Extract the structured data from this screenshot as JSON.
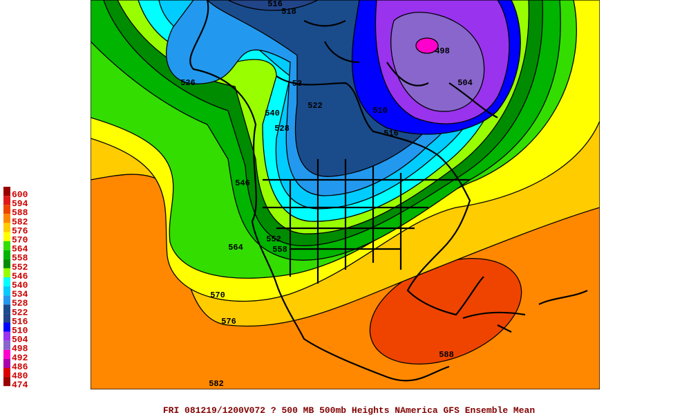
{
  "legend": [
    {
      "label": "600",
      "color": "#990000"
    },
    {
      "label": "594",
      "color": "#dd1a1a"
    },
    {
      "label": "588",
      "color": "#ee4400"
    },
    {
      "label": "582",
      "color": "#ff8800"
    },
    {
      "label": "576",
      "color": "#ffcc00"
    },
    {
      "label": "570",
      "color": "#ffff00"
    },
    {
      "label": "564",
      "color": "#33dd00"
    },
    {
      "label": "558",
      "color": "#00b400"
    },
    {
      "label": "552",
      "color": "#008c00"
    },
    {
      "label": "546",
      "color": "#99ff00"
    },
    {
      "label": "540",
      "color": "#00ffff"
    },
    {
      "label": "534",
      "color": "#00ccff"
    },
    {
      "label": "528",
      "color": "#2299ee"
    },
    {
      "label": "522",
      "color": "#1a4c8c"
    },
    {
      "label": "516",
      "color": "#224488"
    },
    {
      "label": "510",
      "color": "#0000ff"
    },
    {
      "label": "504",
      "color": "#9933ee"
    },
    {
      "label": "498",
      "color": "#8866cc"
    },
    {
      "label": "492",
      "color": "#ff00cc"
    },
    {
      "label": "486",
      "color": "#aa00aa"
    },
    {
      "label": "480",
      "color": "#dd0000"
    },
    {
      "label": "474",
      "color": "#990000"
    }
  ],
  "contour_labels": [
    "516",
    "518",
    "526",
    "53",
    "522",
    "540",
    "528",
    "510",
    "516",
    "504",
    "498",
    "546",
    "564",
    "552",
    "558",
    "570",
    "576",
    "582",
    "588"
  ],
  "caption": "FRI 081219/1200V072  ? 500 MB 500mb Heights NAmerica GFS Ensemble Mean"
}
